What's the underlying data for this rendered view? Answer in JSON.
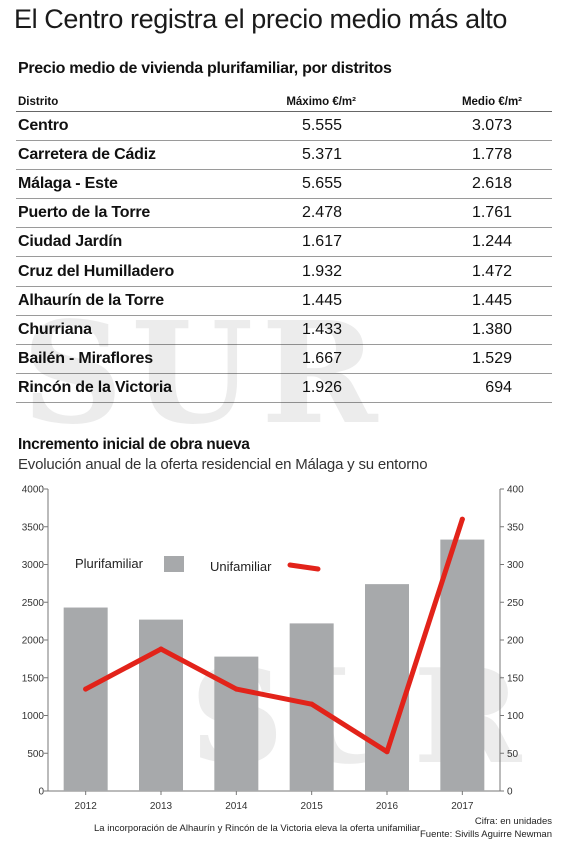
{
  "headline": "El Centro registra el precio medio más alto",
  "table": {
    "title": "Precio medio de vivienda plurifamiliar, por distritos",
    "headers": [
      "Distrito",
      "Máximo €/m²",
      "Medio €/m²"
    ],
    "rows": [
      {
        "distrito": "Centro",
        "maximo": "5.555",
        "medio": "3.073"
      },
      {
        "distrito": "Carretera de Cádiz",
        "maximo": "5.371",
        "medio": "1.778"
      },
      {
        "distrito": "Málaga - Este",
        "maximo": "5.655",
        "medio": "2.618"
      },
      {
        "distrito": "Puerto de la Torre",
        "maximo": "2.478",
        "medio": "1.761"
      },
      {
        "distrito": "Ciudad Jardín",
        "maximo": "1.617",
        "medio": "1.244"
      },
      {
        "distrito": "Cruz del Humilladero",
        "maximo": "1.932",
        "medio": "1.472"
      },
      {
        "distrito": "Alhaurín de la Torre",
        "maximo": "1.445",
        "medio": "1.445"
      },
      {
        "distrito": "Churriana",
        "maximo": "1.433",
        "medio": "1.380"
      },
      {
        "distrito": "Bailén - Miraflores",
        "maximo": "1.667",
        "medio": "1.529"
      },
      {
        "distrito": "Rincón de la Victoria",
        "maximo": "1.926",
        "medio": "694"
      }
    ]
  },
  "watermark": "SUR",
  "chart_data": {
    "type": "bar",
    "title": "Incremento inicial de obra nueva",
    "subtitle": "Evolución anual de la oferta residencial en Málaga y su entorno",
    "categories": [
      "2012",
      "2013",
      "2014",
      "2015",
      "2016",
      "2017"
    ],
    "series": [
      {
        "name": "Plurifamiliar",
        "type": "bar",
        "axis": "left",
        "color": "#a7a9ab",
        "values": [
          2430,
          2270,
          1780,
          2220,
          2740,
          3330
        ]
      },
      {
        "name": "Unifamiliar",
        "type": "line",
        "axis": "right",
        "color": "#e2231a",
        "values": [
          135,
          188,
          135,
          115,
          52,
          360
        ]
      }
    ],
    "y_left": {
      "min": 0,
      "max": 4000,
      "ticks": [
        0,
        500,
        1000,
        1500,
        2000,
        2500,
        3000,
        3500,
        4000
      ]
    },
    "y_right": {
      "min": 0,
      "max": 400,
      "ticks": [
        0,
        50,
        100,
        150,
        200,
        250,
        300,
        350,
        400
      ]
    },
    "grid": false,
    "legend_placement": "top-left"
  },
  "footer": {
    "note": "La incorporación de Alhaurín y Rincón de la Victoria eleva la oferta unifamiliar",
    "cifra": "Cifra: en unidades",
    "fuente": "Fuente: Sivills Aguirre Newman"
  }
}
